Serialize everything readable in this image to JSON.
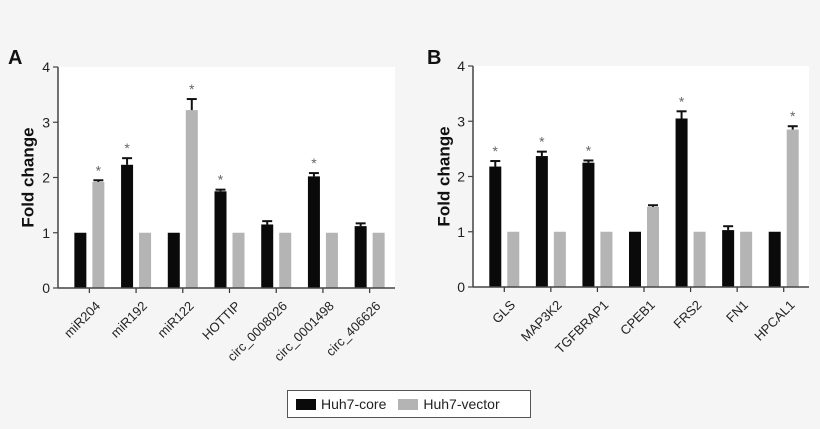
{
  "chart_data": [
    {
      "type": "bar",
      "panel_label": "A",
      "ylabel": "Fold change",
      "ylim": [
        0,
        4
      ],
      "yticks": [
        0,
        1,
        2,
        3,
        4
      ],
      "categories": [
        "miR204",
        "miR192",
        "miR122",
        "HOTTIP",
        "circ_0008026",
        "circ_0001498",
        "circ_406626"
      ],
      "series": [
        {
          "name": "Huh7-core",
          "color": "#0a0a0a",
          "values": [
            1.0,
            2.23,
            1.0,
            1.75,
            1.15,
            2.02,
            1.12
          ],
          "errors": [
            0,
            0.12,
            0,
            0.03,
            0.06,
            0.06,
            0.05
          ]
        },
        {
          "name": "Huh7-vector",
          "color": "#b4b4b4",
          "values": [
            1.92,
            1.0,
            3.22,
            1.0,
            1.0,
            1.0,
            1.0
          ],
          "errors": [
            0.03,
            0,
            0.2,
            0,
            0,
            0,
            0
          ]
        }
      ],
      "significance": [
        {
          "category": "miR204",
          "series": "Huh7-vector",
          "mark": "*"
        },
        {
          "category": "miR192",
          "series": "Huh7-core",
          "mark": "*"
        },
        {
          "category": "miR122",
          "series": "Huh7-vector",
          "mark": "*"
        },
        {
          "category": "HOTTIP",
          "series": "Huh7-core",
          "mark": "*"
        },
        {
          "category": "circ_0001498",
          "series": "Huh7-core",
          "mark": "*"
        }
      ],
      "grid": false
    },
    {
      "type": "bar",
      "panel_label": "B",
      "ylabel": "Fold change",
      "ylim": [
        0,
        4
      ],
      "yticks": [
        0,
        1,
        2,
        3,
        4
      ],
      "categories": [
        "GLS",
        "MAP3K2",
        "TGFBRAP1",
        "CPEB1",
        "FRS2",
        "FN1",
        "HPCAL1"
      ],
      "series": [
        {
          "name": "Huh7-core",
          "color": "#0a0a0a",
          "values": [
            2.18,
            2.37,
            2.25,
            1.0,
            3.05,
            1.03,
            1.0
          ],
          "errors": [
            0.1,
            0.08,
            0.04,
            0,
            0.13,
            0.07,
            0
          ]
        },
        {
          "name": "Huh7-vector",
          "color": "#b4b4b4",
          "values": [
            1.0,
            1.0,
            1.0,
            1.45,
            1.0,
            1.0,
            2.85
          ],
          "errors": [
            0,
            0,
            0,
            0.03,
            0,
            0,
            0.06
          ]
        }
      ],
      "significance": [
        {
          "category": "GLS",
          "series": "Huh7-core",
          "mark": "*"
        },
        {
          "category": "MAP3K2",
          "series": "Huh7-core",
          "mark": "*"
        },
        {
          "category": "TGFBRAP1",
          "series": "Huh7-core",
          "mark": "*"
        },
        {
          "category": "FRS2",
          "series": "Huh7-core",
          "mark": "*"
        },
        {
          "category": "HPCAL1",
          "series": "Huh7-vector",
          "mark": "*"
        }
      ],
      "grid": false
    }
  ],
  "legend": {
    "items": [
      {
        "label": "Huh7-core",
        "color": "#0a0a0a"
      },
      {
        "label": "Huh7-vector",
        "color": "#b4b4b4"
      }
    ]
  }
}
